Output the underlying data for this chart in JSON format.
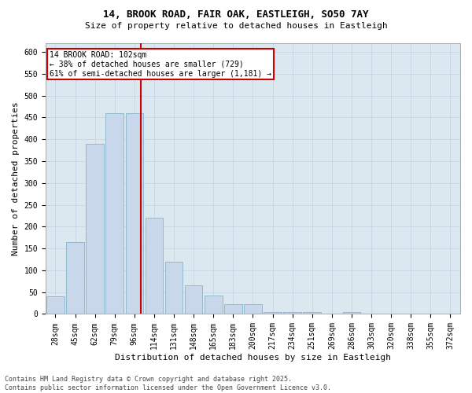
{
  "title_line1": "14, BROOK ROAD, FAIR OAK, EASTLEIGH, SO50 7AY",
  "title_line2": "Size of property relative to detached houses in Eastleigh",
  "xlabel": "Distribution of detached houses by size in Eastleigh",
  "ylabel": "Number of detached properties",
  "bar_labels": [
    "28sqm",
    "45sqm",
    "62sqm",
    "79sqm",
    "96sqm",
    "114sqm",
    "131sqm",
    "148sqm",
    "165sqm",
    "183sqm",
    "200sqm",
    "217sqm",
    "234sqm",
    "251sqm",
    "269sqm",
    "286sqm",
    "303sqm",
    "320sqm",
    "338sqm",
    "355sqm",
    "372sqm"
  ],
  "bar_values": [
    40,
    165,
    390,
    460,
    460,
    220,
    120,
    65,
    42,
    22,
    22,
    5,
    5,
    5,
    0,
    5,
    0,
    0,
    0,
    0,
    0
  ],
  "bar_color": "#c8d8ea",
  "bar_edge_color": "#8ab4cc",
  "grid_color": "#c5d5e5",
  "background_color": "#dce8f0",
  "vline_color": "#cc0000",
  "ylim_max": 620,
  "yticks": [
    0,
    50,
    100,
    150,
    200,
    250,
    300,
    350,
    400,
    450,
    500,
    550,
    600
  ],
  "annotation_text": "14 BROOK ROAD: 102sqm\n← 38% of detached houses are smaller (729)\n61% of semi-detached houses are larger (1,181) →",
  "annotation_box_facecolor": "#ffffff",
  "annotation_box_edgecolor": "#cc0000",
  "footnote": "Contains HM Land Registry data © Crown copyright and database right 2025.\nContains public sector information licensed under the Open Government Licence v3.0.",
  "title1_fontsize": 9,
  "title2_fontsize": 8,
  "tick_fontsize": 7,
  "ylabel_fontsize": 8,
  "xlabel_fontsize": 8,
  "annot_fontsize": 7,
  "footnote_fontsize": 6
}
